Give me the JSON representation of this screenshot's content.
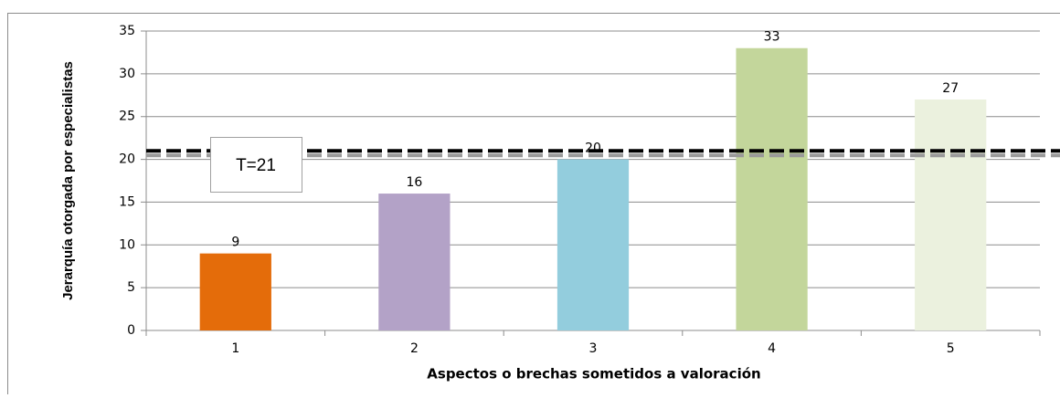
{
  "chart_data": {
    "type": "bar",
    "x_label": "Aspectos o brechas sometidos a valoración",
    "y_label": "Jerarquía otorgada por especialistas",
    "categories": [
      "1",
      "2",
      "3",
      "4",
      "5"
    ],
    "values": [
      9,
      16,
      20,
      33,
      27
    ],
    "colors": [
      "#e46c0a",
      "#b3a2c7",
      "#93cddd",
      "#c3d69b",
      "#ebf1de"
    ],
    "ylim": [
      0,
      35
    ],
    "yticks": [
      0,
      5,
      10,
      15,
      20,
      25,
      30,
      35
    ],
    "grid": true,
    "threshold": {
      "value": 21,
      "label": "T=21"
    }
  }
}
